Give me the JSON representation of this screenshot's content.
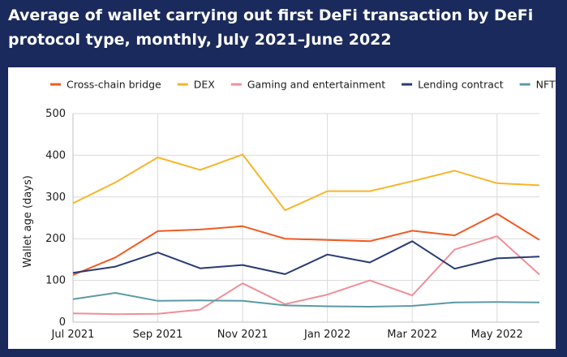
{
  "chart_data": {
    "type": "line",
    "title": "Average of wallet carrying out first DeFi transaction by DeFi protocol type, monthly, July 2021–June 2022",
    "xlabel": "",
    "ylabel": "Wallet age (days)",
    "ylim": [
      0,
      500
    ],
    "yticks": [
      "0",
      "100",
      "200",
      "300",
      "400",
      "500"
    ],
    "grid": true,
    "legend_position": "top",
    "categories": [
      "Jul 2021",
      "Aug 2021",
      "Sep 2021",
      "Oct 2021",
      "Nov 2021",
      "Dec 2021",
      "Jan 2022",
      "Feb 2022",
      "Mar 2022",
      "Apr 2022",
      "May 2022",
      "Jun 2022"
    ],
    "xtick_labels": [
      "Jul 2021",
      "",
      "Sep 2021",
      "",
      "Nov 2021",
      "",
      "Jan 2022",
      "",
      "Mar 2022",
      "",
      "May 2022",
      ""
    ],
    "series": [
      {
        "name": "Cross-chain bridge",
        "color": "#f05a22",
        "values": [
          113,
          155,
          218,
          222,
          230,
          200,
          197,
          194,
          219,
          208,
          260,
          197
        ]
      },
      {
        "name": "DEX",
        "color": "#f7b52a",
        "values": [
          285,
          335,
          395,
          365,
          402,
          268,
          314,
          314,
          338,
          363,
          333,
          328
        ]
      },
      {
        "name": "Gaming and entertainment",
        "color": "#ee8f97",
        "values": [
          21,
          19,
          20,
          30,
          93,
          43,
          66,
          100,
          64,
          174,
          206,
          114
        ]
      },
      {
        "name": "Lending contract",
        "color": "#283a73",
        "values": [
          118,
          133,
          167,
          129,
          137,
          115,
          162,
          143,
          194,
          128,
          153,
          157
        ]
      },
      {
        "name": "NFT",
        "color": "#5b9aa6",
        "values": [
          55,
          70,
          51,
          52,
          51,
          40,
          38,
          37,
          39,
          47,
          48,
          47
        ]
      }
    ]
  }
}
